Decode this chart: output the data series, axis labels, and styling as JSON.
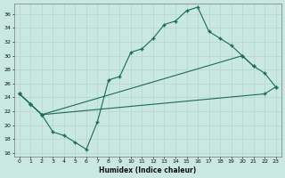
{
  "xlabel": "Humidex (Indice chaleur)",
  "bg_color": "#c8e8e0",
  "line_color": "#1a6b5a",
  "grid_color": "#b8d8d0",
  "xlim": [
    -0.5,
    23.5
  ],
  "ylim": [
    15.5,
    37.5
  ],
  "xticks": [
    0,
    1,
    2,
    3,
    4,
    5,
    6,
    7,
    8,
    9,
    10,
    11,
    12,
    13,
    14,
    15,
    16,
    17,
    18,
    19,
    20,
    21,
    22,
    23
  ],
  "yticks": [
    16,
    18,
    20,
    22,
    24,
    26,
    28,
    30,
    32,
    34,
    36
  ],
  "line1_x": [
    0,
    1,
    2,
    3,
    4,
    5,
    6,
    7,
    8,
    9,
    10,
    11,
    12,
    13,
    14,
    15,
    16,
    17,
    18,
    19,
    20,
    21
  ],
  "line1_y": [
    24.5,
    23.0,
    21.5,
    19.0,
    18.5,
    17.5,
    16.5,
    20.5,
    26.5,
    27.0,
    30.5,
    31.0,
    32.5,
    34.5,
    35.0,
    36.5,
    37.0,
    33.5,
    32.5,
    31.5,
    30.0,
    28.5
  ],
  "line2_x": [
    0,
    1,
    2,
    20,
    21,
    22,
    23
  ],
  "line2_y": [
    24.5,
    23.0,
    21.5,
    30.0,
    28.5,
    27.5,
    25.5
  ],
  "line3_x": [
    0,
    1,
    2,
    22,
    23
  ],
  "line3_y": [
    24.5,
    23.0,
    21.5,
    24.5,
    25.5
  ]
}
